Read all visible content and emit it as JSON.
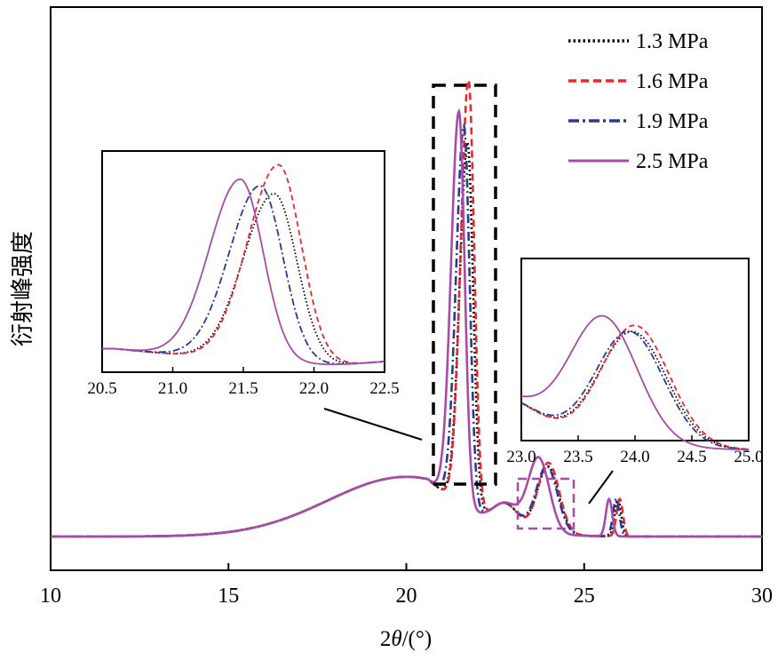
{
  "chart_data": {
    "type": "line",
    "ylabel": "衍射峰强度",
    "xlabel_main": "2",
    "xlabel_theta": "θ",
    "xlabel_unit": "/(°)",
    "xlim": [
      10,
      30
    ],
    "xticks": [
      "10",
      "15",
      "20",
      "25",
      "30"
    ],
    "legend_position": "top-right",
    "series": [
      {
        "name": "1.3 MPa",
        "color": "#000000",
        "style": "dotted",
        "peak1": 21.72,
        "peak1_height": 0.98,
        "peak2": 23.98,
        "peak2_height": 0.18,
        "peak3": 25.95,
        "peak3_height": 0.1
      },
      {
        "name": "1.6 MPa",
        "color": "#e8282e",
        "style": "dashed",
        "peak1": 21.75,
        "peak1_height": 1.15,
        "peak2": 24.0,
        "peak2_height": 0.19,
        "peak3": 26.0,
        "peak3_height": 0.1
      },
      {
        "name": "1.9 MPa",
        "color": "#2b3990",
        "style": "dashdot",
        "peak1": 21.62,
        "peak1_height": 1.02,
        "peak2": 23.95,
        "peak2_height": 0.18,
        "peak3": 25.9,
        "peak3_height": 0.1
      },
      {
        "name": "2.5 MPa",
        "color": "#a64ca6",
        "style": "solid",
        "peak1": 21.48,
        "peak1_height": 1.05,
        "peak2": 23.72,
        "peak2_height": 0.2,
        "peak3": 25.7,
        "peak3_height": 0.1
      }
    ],
    "inset1": {
      "xlim": [
        20.5,
        22.5
      ],
      "xticks": [
        "20.5",
        "21.0",
        "21.5",
        "22.0",
        "22.5"
      ]
    },
    "inset2": {
      "xlim": [
        23.0,
        25.0
      ],
      "xticks": [
        "23.0",
        "23.5",
        "24.0",
        "24.5",
        "25.0"
      ]
    }
  }
}
